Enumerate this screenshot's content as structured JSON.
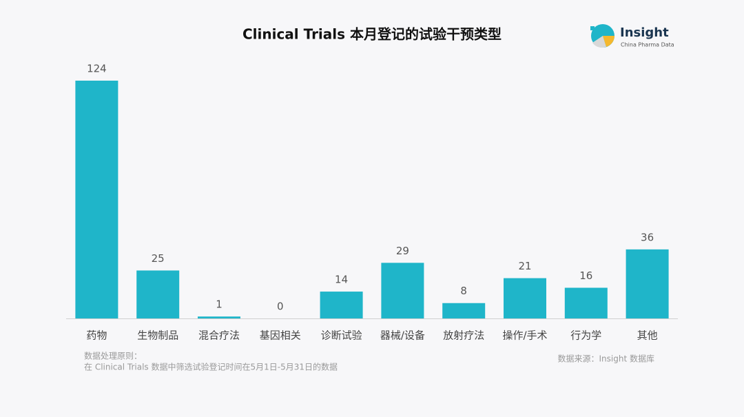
{
  "chart_data": {
    "type": "bar",
    "title": "Clinical Trials 本月登记的试验干预类型",
    "categories": [
      "药物",
      "生物制品",
      "混合疗法",
      "基因相关",
      "诊断试验",
      "器械/设备",
      "放射疗法",
      "操作/手术",
      "行为学",
      "其他"
    ],
    "values": [
      124,
      25,
      1,
      0,
      14,
      29,
      8,
      21,
      16,
      36
    ],
    "color": "#1fb5c9"
  },
  "notes": {
    "heading": "数据处理原则：",
    "text": "在 Clinical Trials 数据中筛选试验登记时间在5月1日-5月31日的数据"
  },
  "source": "数据来源：Insight 数据库",
  "logo": {
    "name": "Insight",
    "subtitle": "China Pharma Data"
  }
}
